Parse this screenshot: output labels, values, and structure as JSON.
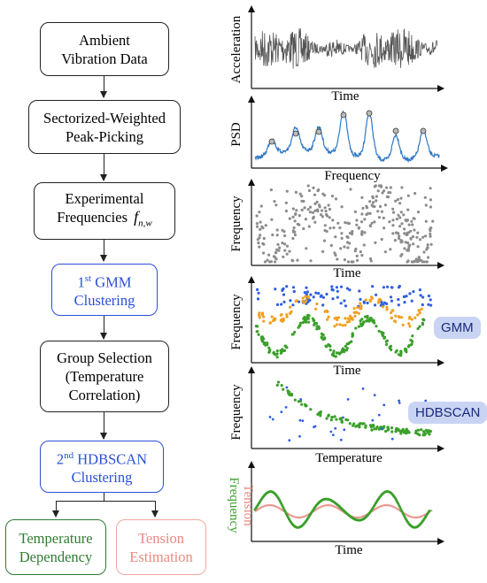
{
  "flow": {
    "step1": "Ambient\nVibration Data",
    "step2": "Sectorized-Weighted\nPeak-Picking",
    "step3_line1": "Experimental",
    "step3_line2": "Frequencies",
    "step3_symbol": "f",
    "step3_sub": "n,w",
    "step4_sup_num": "1",
    "step4_sup": "st",
    "step4_word": " GMM",
    "step4_line2": "Clustering",
    "step5": "Group Selection\n(Temperature\nCorrelation)",
    "step6_sup_num": "2",
    "step6_sup": "nd",
    "step6_word": " HDBSCAN",
    "step6_line2": "Clustering",
    "out_left": "Temperature\nDependency",
    "out_right": "Tension\nEstimation"
  },
  "panels": {
    "p1": {
      "ylabel": "Acceleration",
      "xlabel": "Time"
    },
    "p2": {
      "ylabel": "PSD",
      "xlabel": "Frequency"
    },
    "p3": {
      "ylabel": "Frequency",
      "xlabel": "Time"
    },
    "p4": {
      "ylabel": "Frequency",
      "xlabel": "Time",
      "tag": "GMM"
    },
    "p5": {
      "ylabel": "Frequency",
      "xlabel": "Temperature",
      "tag": "HDBSCAN"
    },
    "p6": {
      "ylabel_a": "Frequency",
      "ylabel_b": "Tension",
      "xlabel": "Time"
    }
  },
  "colors": {
    "signal": "#555555",
    "psd": "#2f78c4",
    "grey_points": "#8c8c8c",
    "blue_points": "#2f5fe0",
    "orange_points": "#f0a020",
    "green_points": "#3aa02a",
    "tension": "#e89a90",
    "blue_box": "#2a4fd6",
    "green_box": "#2e7d32",
    "red_box": "#e88a80"
  }
}
